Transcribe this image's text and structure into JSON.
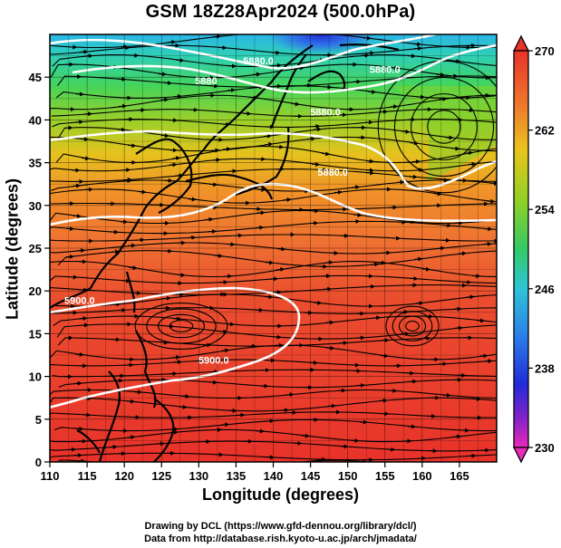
{
  "title": "GSM 18Z28Apr2024 (500.0hPa)",
  "xlabel": "Longitude (degrees)",
  "ylabel": "Latitude  (degrees)",
  "credits": {
    "line1": "Drawing by DCL (https://www.gfd-dennou.org/library/dcl/)",
    "line2": "Data from http://database.rish.kyoto-u.ac.jp/arch/jmadata/"
  },
  "map": {
    "x_ticks": [
      "110",
      "115",
      "120",
      "125",
      "130",
      "135",
      "140",
      "145",
      "150",
      "155",
      "160",
      "165"
    ],
    "y_ticks": [
      "0",
      "5",
      "10",
      "15",
      "20",
      "25",
      "30",
      "35",
      "40",
      "45"
    ],
    "xlim": [
      110,
      170
    ],
    "ylim": [
      0,
      50
    ],
    "colorbar": {
      "labels": [
        "270",
        "262",
        "254",
        "246",
        "238",
        "230"
      ],
      "range": [
        230,
        270
      ]
    },
    "contour_labels": [
      {
        "text": "5880.0",
        "lon": 138,
        "lat": 46.5
      },
      {
        "text": "5880.0",
        "lon": 155,
        "lat": 45.5
      },
      {
        "text": "5880",
        "lon": 131,
        "lat": 44.2
      },
      {
        "text": "5880.0",
        "lon": 147,
        "lat": 40.5
      },
      {
        "text": "5880.0",
        "lon": 148,
        "lat": 33.5
      },
      {
        "text": "5900.0",
        "lon": 114,
        "lat": 18.5
      },
      {
        "text": "5900.0",
        "lon": 132,
        "lat": 11.5
      }
    ],
    "colors": {
      "high": "#e8322a",
      "low": "#1f2bd8",
      "contour": "#ffffff",
      "coast": "#000000"
    }
  }
}
